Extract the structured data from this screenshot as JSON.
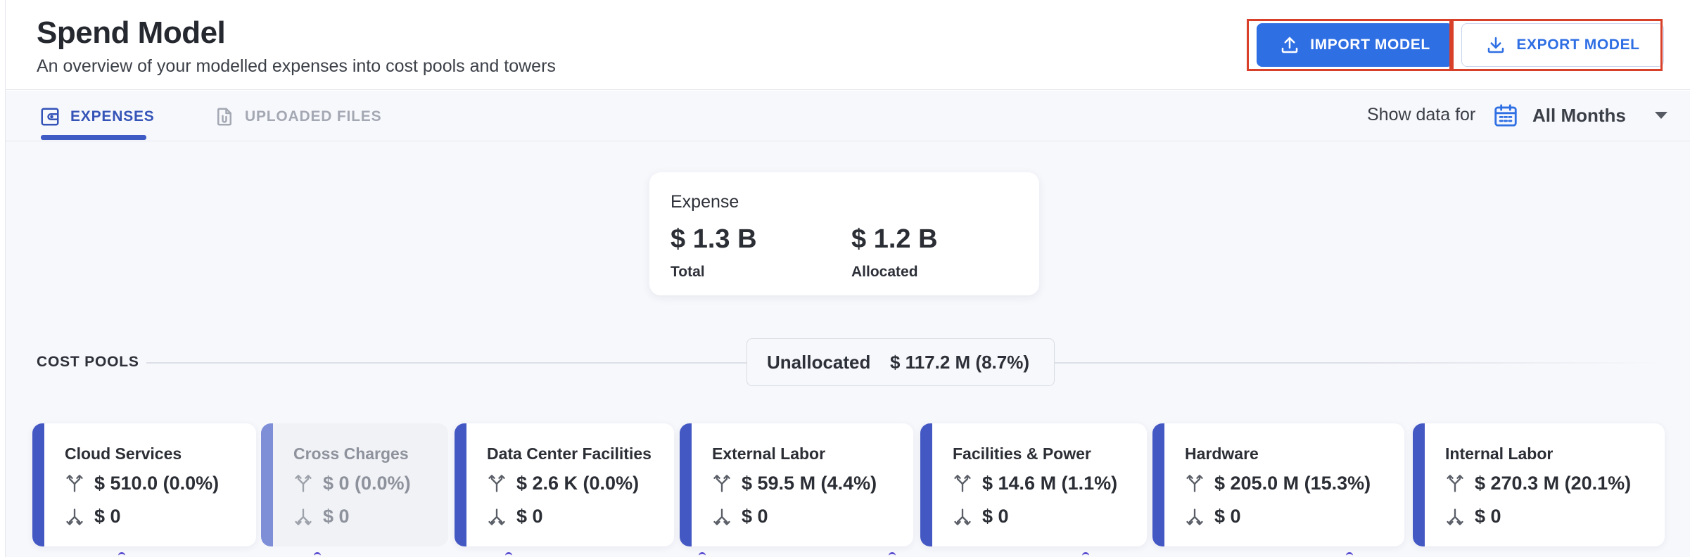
{
  "header": {
    "title": "Spend Model",
    "subtitle": "An overview of your modelled expenses into cost pools and towers",
    "import_label": "IMPORT MODEL",
    "export_label": "EXPORT MODEL"
  },
  "tabs": [
    {
      "label": "EXPENSES",
      "active": true,
      "icon": "wallet-icon"
    },
    {
      "label": "UPLOADED FILES",
      "active": false,
      "icon": "file-attachment-icon"
    }
  ],
  "filter": {
    "label": "Show data for",
    "icon": "calendar-icon",
    "value": "All Months"
  },
  "expense": {
    "title": "Expense",
    "total_value": "$ 1.3 B",
    "total_label": "Total",
    "allocated_value": "$ 1.2 B",
    "allocated_label": "Allocated"
  },
  "cost_pools": {
    "section_label": "COST POOLS",
    "unallocated_label": "Unallocated",
    "unallocated_value": "$ 117.2 M (8.7%)",
    "items": [
      {
        "name": "Cloud Services",
        "in": "$ 510.0 (0.0%)",
        "out": "$ 0",
        "dimmed": false
      },
      {
        "name": "Cross Charges",
        "in": "$ 0 (0.0%)",
        "out": "$ 0",
        "dimmed": true
      },
      {
        "name": "Data Center Facilities",
        "in": "$ 2.6 K (0.0%)",
        "out": "$ 0",
        "dimmed": false
      },
      {
        "name": "External Labor",
        "in": "$ 59.5 M (4.4%)",
        "out": "$ 0",
        "dimmed": false
      },
      {
        "name": "Facilities & Power",
        "in": "$ 14.6 M (1.1%)",
        "out": "$ 0",
        "dimmed": false
      },
      {
        "name": "Hardware",
        "in": "$ 205.0 M (15.3%)",
        "out": "$ 0",
        "dimmed": false
      },
      {
        "name": "Internal Labor",
        "in": "$ 270.3 M (20.1%)",
        "out": "$ 0",
        "dimmed": false
      }
    ]
  },
  "colors": {
    "primary": "#2f6fe4",
    "tab_active": "#3554b8",
    "pool_stripe": "#4458c4",
    "highlight": "#d8402a"
  }
}
